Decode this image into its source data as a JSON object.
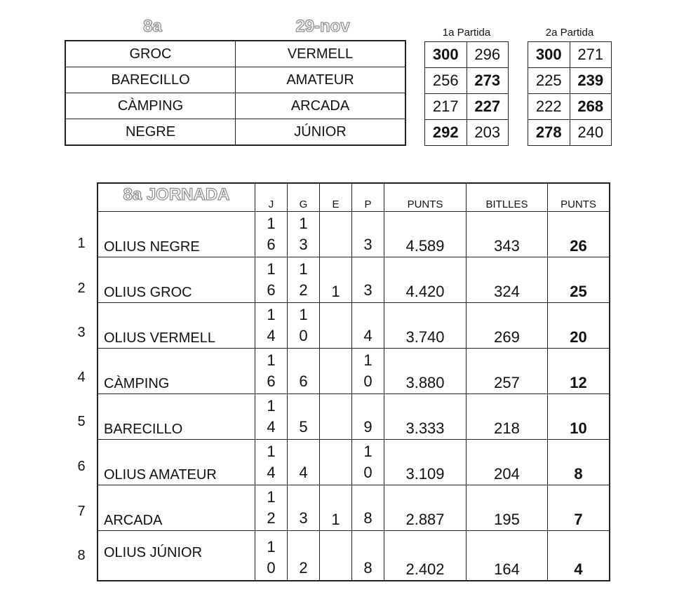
{
  "header": {
    "round": "8a",
    "date": "29-nov"
  },
  "matches": [
    [
      "GROC",
      "VERMELL"
    ],
    [
      "BARECILLO",
      "AMATEUR"
    ],
    [
      "CÀMPING",
      "ARCADA"
    ],
    [
      "NEGRE",
      "JÚNIOR"
    ]
  ],
  "game1": {
    "label": "1a Partida",
    "rows": [
      [
        "300",
        "296",
        0
      ],
      [
        "256",
        "273",
        1
      ],
      [
        "217",
        "227",
        1
      ],
      [
        "292",
        "203",
        0
      ]
    ]
  },
  "game2": {
    "label": "2a Partida",
    "rows": [
      [
        "300",
        "271",
        0
      ],
      [
        "225",
        "239",
        1
      ],
      [
        "222",
        "268",
        1
      ],
      [
        "278",
        "240",
        0
      ]
    ]
  },
  "standings": {
    "title": "8a JORNADA",
    "columns": [
      "J",
      "G",
      "E",
      "P",
      "PUNTS",
      "BITLLES",
      "PUNTS"
    ],
    "rows": [
      {
        "rank": "1",
        "team": "OLIUS NEGRE",
        "J": "16",
        "G": "13",
        "E": "",
        "P": "3",
        "punts": "4.589",
        "bitlles": "343",
        "total": "26"
      },
      {
        "rank": "2",
        "team": "OLIUS GROC",
        "J": "16",
        "G": "12",
        "E": "1",
        "P": "3",
        "punts": "4.420",
        "bitlles": "324",
        "total": "25"
      },
      {
        "rank": "3",
        "team": "OLIUS VERMELL",
        "J": "14",
        "G": "10",
        "E": "",
        "P": "4",
        "punts": "3.740",
        "bitlles": "269",
        "total": "20"
      },
      {
        "rank": "4",
        "team": "CÀMPING",
        "J": "16",
        "G": "6",
        "E": "",
        "P": "10",
        "punts": "3.880",
        "bitlles": "257",
        "total": "12"
      },
      {
        "rank": "5",
        "team": "BARECILLO",
        "J": "14",
        "G": "5",
        "E": "",
        "P": "9",
        "punts": "3.333",
        "bitlles": "218",
        "total": "10"
      },
      {
        "rank": "6",
        "team": "OLIUS AMATEUR",
        "J": "14",
        "G": "4",
        "E": "",
        "P": "10",
        "punts": "3.109",
        "bitlles": "204",
        "total": "8"
      },
      {
        "rank": "7",
        "team": "ARCADA",
        "J": "12",
        "G": "3",
        "E": "1",
        "P": "8",
        "punts": "2.887",
        "bitlles": "195",
        "total": "7"
      },
      {
        "rank": "8",
        "team": "OLIUS JÚNIOR",
        "J": "10",
        "G": "2",
        "E": "",
        "P": "8",
        "punts": "2.402",
        "bitlles": "164",
        "total": "4"
      }
    ]
  }
}
